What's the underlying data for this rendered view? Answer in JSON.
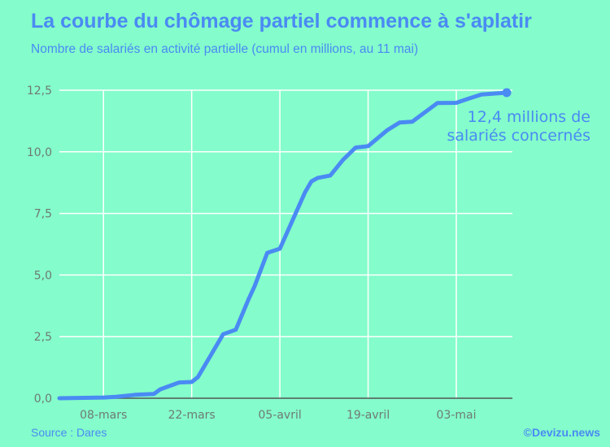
{
  "title": "La courbe du chômage partiel commence à s'aplatir",
  "subtitle": "Nombre de salariés en activité partielle (cumul en millions, au 11 mai)",
  "source": "Source : Dares",
  "credit": "©Devizu.news",
  "colors": {
    "background": "#84fccb",
    "line": "#4a8af3",
    "grid": "#ffffff",
    "text": "#4a8af3"
  },
  "chart_data": {
    "type": "line",
    "title": "La courbe du chômage partiel commence à s'aplatir",
    "subtitle": "Nombre de salariés en activité partielle (cumul en millions, au 11 mai)",
    "xlabel": "",
    "ylabel": "",
    "xlim": [
      "2020-03-01",
      "2020-05-11"
    ],
    "ylim": [
      0,
      12.5
    ],
    "grid": true,
    "x_ticks": [
      {
        "date": "2020-03-08",
        "label": "08-mars"
      },
      {
        "date": "2020-03-22",
        "label": "22-mars"
      },
      {
        "date": "2020-04-05",
        "label": "05-avril"
      },
      {
        "date": "2020-04-19",
        "label": "19-avril"
      },
      {
        "date": "2020-05-03",
        "label": "03-mai"
      }
    ],
    "y_ticks": [
      {
        "value": 0,
        "label": "0,0"
      },
      {
        "value": 2.5,
        "label": "2,5"
      },
      {
        "value": 5,
        "label": "5,0"
      },
      {
        "value": 7.5,
        "label": "7,5"
      },
      {
        "value": 10,
        "label": "10,0"
      },
      {
        "value": 12.5,
        "label": "12,5"
      }
    ],
    "series": [
      {
        "x": [
          "2020-03-01",
          "2020-03-08",
          "2020-03-10",
          "2020-03-13",
          "2020-03-16",
          "2020-03-17",
          "2020-03-20",
          "2020-03-22",
          "2020-03-23",
          "2020-03-27",
          "2020-03-29",
          "2020-03-31",
          "2020-04-01",
          "2020-04-03",
          "2020-04-05",
          "2020-04-09",
          "2020-04-10",
          "2020-04-11",
          "2020-04-13",
          "2020-04-15",
          "2020-04-17",
          "2020-04-19",
          "2020-04-22",
          "2020-04-24",
          "2020-04-26",
          "2020-04-30",
          "2020-05-03",
          "2020-05-05",
          "2020-05-07",
          "2020-05-11"
        ],
        "y": [
          0,
          0.03,
          0.06,
          0.14,
          0.17,
          0.36,
          0.64,
          0.66,
          0.86,
          2.6,
          2.78,
          4.0,
          4.55,
          5.9,
          6.07,
          8.36,
          8.8,
          8.94,
          9.04,
          9.67,
          10.17,
          10.23,
          10.87,
          11.19,
          11.22,
          11.98,
          11.99,
          12.16,
          12.33,
          12.4
        ]
      }
    ],
    "annotations": [
      {
        "date": "2020-05-11",
        "value": 12.4,
        "line1": "12,4 millions de",
        "line2": "salariés concernés"
      }
    ]
  }
}
